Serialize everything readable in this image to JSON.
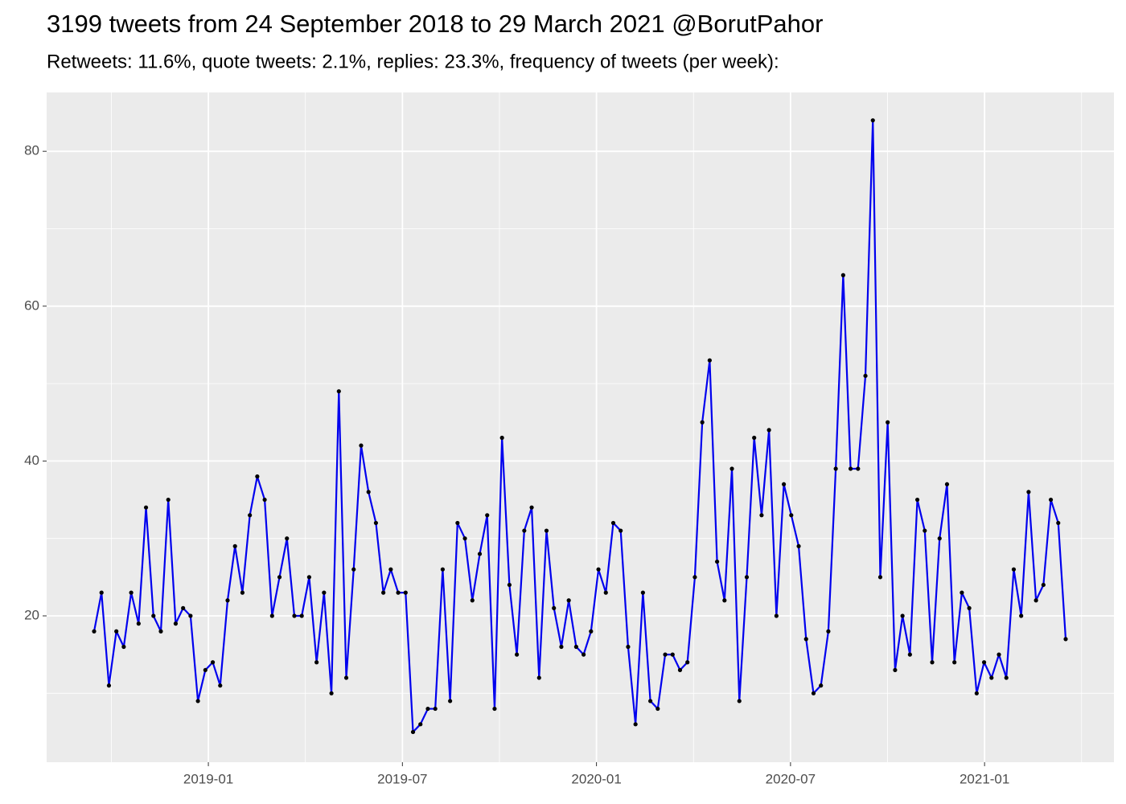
{
  "chart_data": {
    "type": "line",
    "title": "3199 tweets from 24 September 2018 to 29 March 2021 @BorutPahor",
    "subtitle": "Retweets: 11.6%, quote tweets: 2.1%, replies: 23.3%, frequency of tweets (per week):",
    "series": [
      {
        "color": "#0000ee",
        "point_color": "#000000",
        "values": [
          18,
          23,
          11,
          18,
          16,
          23,
          19,
          34,
          20,
          18,
          35,
          19,
          21,
          20,
          9,
          13,
          14,
          11,
          22,
          29,
          23,
          33,
          38,
          35,
          20,
          25,
          30,
          20,
          20,
          25,
          14,
          23,
          10,
          49,
          12,
          26,
          42,
          36,
          32,
          23,
          26,
          23,
          23,
          5,
          6,
          8,
          8,
          26,
          9,
          32,
          30,
          22,
          28,
          33,
          8,
          43,
          24,
          15,
          31,
          34,
          12,
          31,
          21,
          16,
          22,
          16,
          15,
          18,
          26,
          23,
          32,
          31,
          16,
          6,
          23,
          9,
          8,
          15,
          15,
          13,
          14,
          25,
          45,
          53,
          27,
          22,
          39,
          9,
          25,
          43,
          33,
          44,
          20,
          37,
          33,
          29,
          17,
          10,
          11,
          18,
          39,
          64,
          39,
          39,
          51,
          84,
          25,
          45,
          13,
          20,
          15,
          35,
          31,
          14,
          30,
          37,
          14,
          23,
          21,
          10,
          14,
          12,
          15,
          12,
          26,
          20,
          36,
          22,
          24,
          35,
          32,
          17
        ]
      }
    ],
    "xlim": [
      "2018-08",
      "2021-05"
    ],
    "xticks": [
      "2019-01",
      "2019-07",
      "2020-01",
      "2020-07",
      "2021-01"
    ],
    "ylim": [
      1.1,
      87.6
    ],
    "yticks": [
      20,
      40,
      60,
      80
    ],
    "grid": true
  }
}
